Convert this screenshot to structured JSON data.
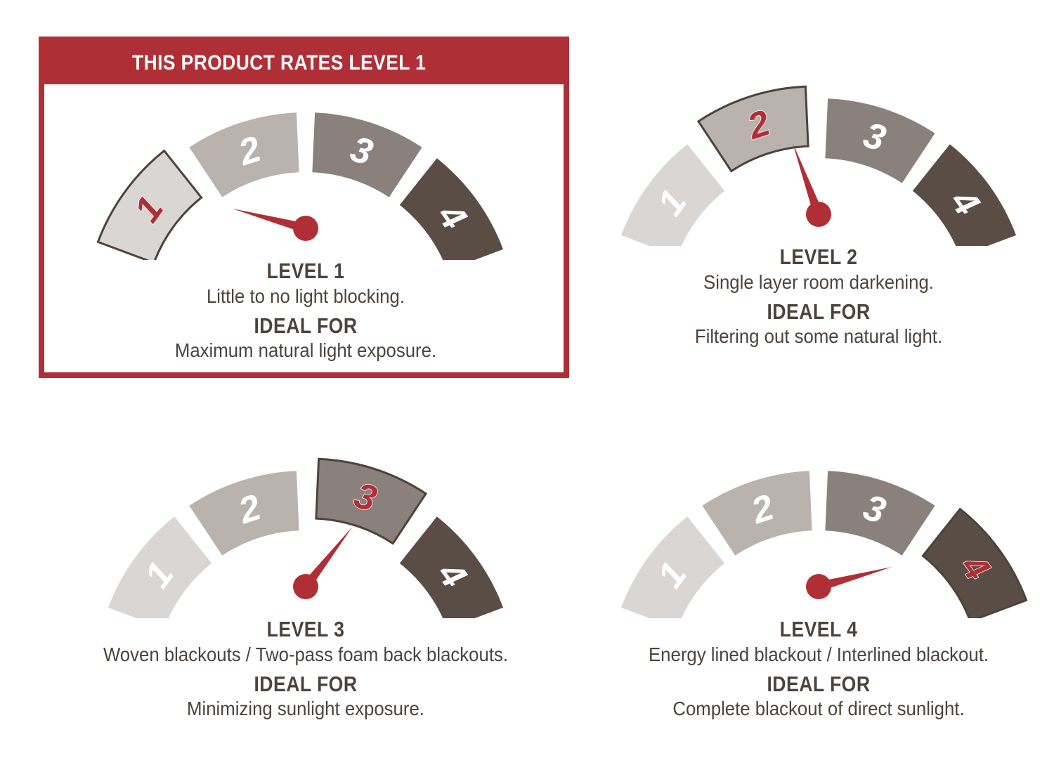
{
  "product_rating_label": "THIS PRODUCT RATES LEVEL 1",
  "colors": {
    "accent_red": "#b02f37",
    "text_brown": "#4d433b",
    "segment_1": "#d9d6d3",
    "segment_2": "#b9b2ad",
    "segment_3": "#8a817c",
    "segment_4": "#5a4d45",
    "highlight_outline": "#4d433b"
  },
  "segment_numbers": [
    "1",
    "2",
    "3",
    "4"
  ],
  "gauges": [
    {
      "level": 1,
      "heading": "LEVEL 1",
      "description": "Little to no light blocking.",
      "ideal_heading": "IDEAL FOR",
      "ideal_description": "Maximum natural light exposure."
    },
    {
      "level": 2,
      "heading": "LEVEL 2",
      "description": "Single layer room darkening.",
      "ideal_heading": "IDEAL FOR",
      "ideal_description": "Filtering out some natural light."
    },
    {
      "level": 3,
      "heading": "LEVEL 3",
      "description": "Woven blackouts / Two-pass foam back blackouts.",
      "ideal_heading": "IDEAL FOR",
      "ideal_description": "Minimizing sunlight exposure."
    },
    {
      "level": 4,
      "heading": "LEVEL 4",
      "description": "Energy lined blackout / Interlined blackout.",
      "ideal_heading": "IDEAL FOR",
      "ideal_description": "Complete blackout of direct sunlight."
    }
  ]
}
